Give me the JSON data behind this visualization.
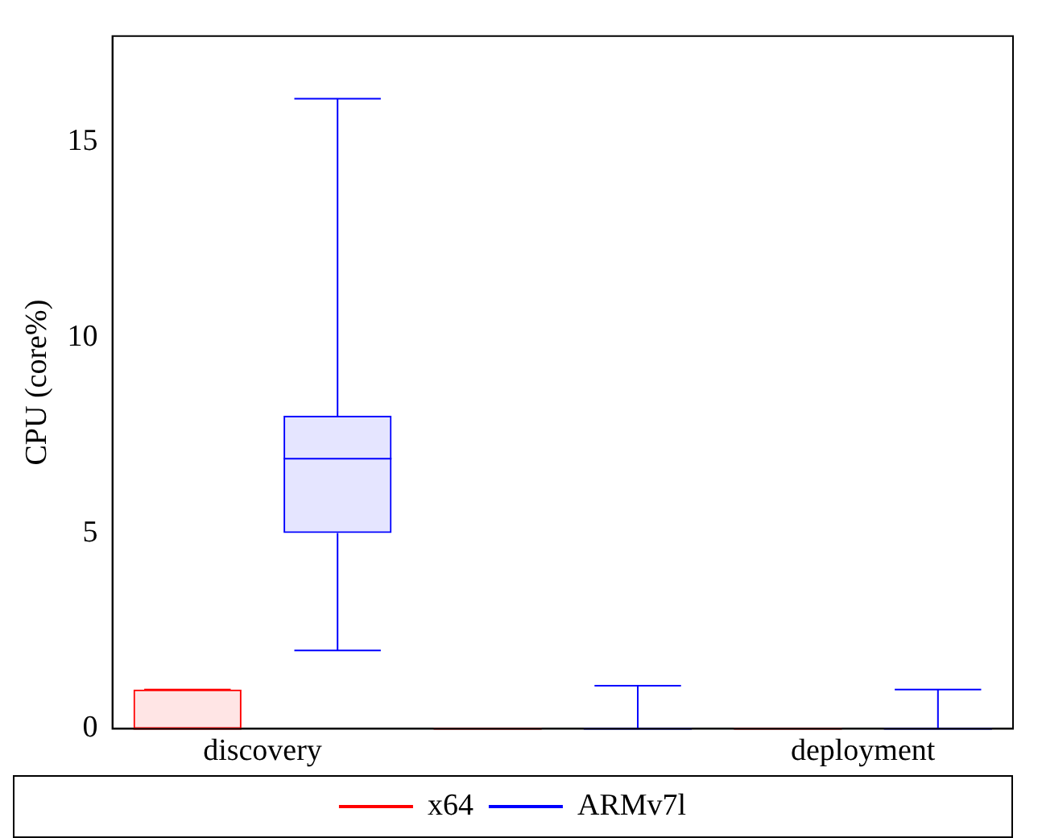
{
  "chart_data": {
    "type": "box",
    "ylabel": "CPU (core%)",
    "categories": [
      "discovery",
      null,
      "deployment"
    ],
    "series": [
      {
        "name": "x64",
        "color": "#ff0000",
        "boxes": [
          {
            "low": 0,
            "q1": 0,
            "median": 0,
            "q3": 1,
            "high": 1
          },
          {
            "low": 0,
            "q1": 0,
            "median": 0,
            "q3": 0,
            "high": 0
          },
          {
            "low": 0,
            "q1": 0,
            "median": 0,
            "q3": 0,
            "high": 0
          }
        ]
      },
      {
        "name": "ARMv7l",
        "color": "#0000ff",
        "boxes": [
          {
            "low": 2,
            "q1": 5,
            "median": 6.9,
            "q3": 8,
            "high": 16.1
          },
          {
            "low": 0,
            "q1": 0,
            "median": 0,
            "q3": 0,
            "high": 1.1
          },
          {
            "low": 0,
            "q1": 0,
            "median": 0,
            "q3": 0,
            "high": 1
          }
        ]
      }
    ],
    "ylim": [
      0,
      17.7
    ],
    "yticks": [
      0,
      5,
      10,
      15
    ],
    "grid": false,
    "legend": "bottom"
  }
}
